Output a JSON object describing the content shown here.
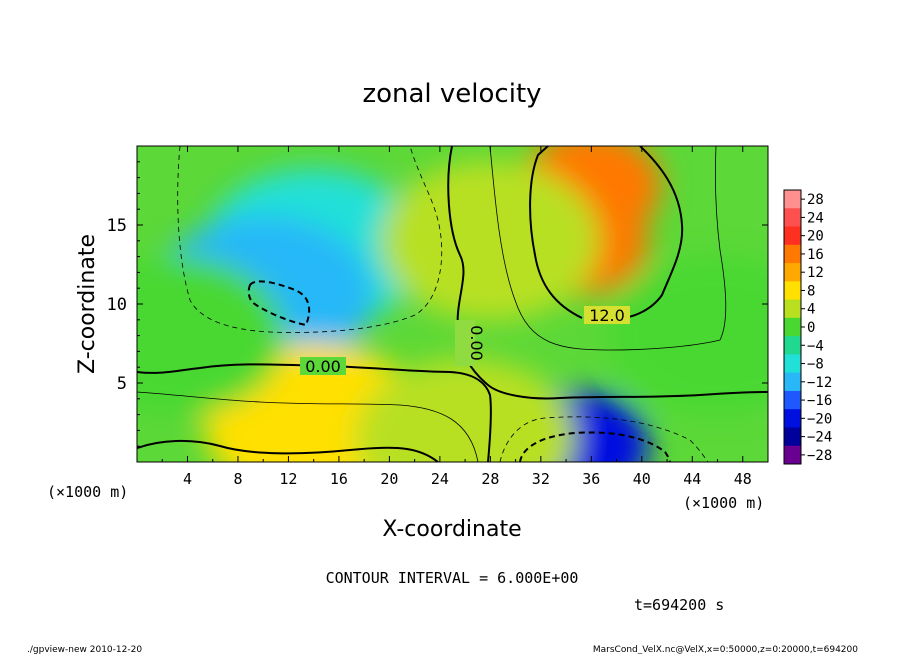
{
  "chart_data": {
    "type": "heatmap",
    "title": "zonal velocity",
    "xlabel": "X-coordinate",
    "ylabel": "Z-coordinate",
    "x_unit": "(×1000 m)",
    "y_unit": "(×1000 m)",
    "xlim": [
      0,
      50
    ],
    "ylim": [
      0,
      20
    ],
    "x_ticks": [
      "4",
      "8",
      "12",
      "16",
      "20",
      "24",
      "28",
      "32",
      "36",
      "40",
      "44",
      "48"
    ],
    "y_ticks": [
      "5",
      "10",
      "15"
    ],
    "colorbar": {
      "labels": [
        "28",
        "24",
        "20",
        "16",
        "12",
        "8",
        "4",
        "0",
        "−4",
        "−8",
        "−12",
        "−16",
        "−20",
        "−24",
        "−28"
      ],
      "colors": [
        "#ff9090",
        "#ff5050",
        "#ff3020",
        "#ff7800",
        "#ffa800",
        "#ffe000",
        "#b8e020",
        "#48d830",
        "#20d890",
        "#20e0d8",
        "#28b8f8",
        "#2058ff",
        "#0010e0",
        "#00009a",
        "#6a0090"
      ]
    },
    "contour_labels": [
      "0.00",
      "0.00",
      "12.0"
    ],
    "contour_interval_text": "CONTOUR INTERVAL = 6.000E+00",
    "time_text": "t=694200  s",
    "field_regions": [
      {
        "x": 14,
        "z": 13.5,
        "value": -8
      },
      {
        "x": 10,
        "z": 10.5,
        "value": -12
      },
      {
        "x": 35,
        "z": 14,
        "value": 16
      },
      {
        "x": 36,
        "z": 17.5,
        "value": 18
      },
      {
        "x": 35,
        "z": 1,
        "value": -20
      },
      {
        "x": 14,
        "z": 2.5,
        "value": 7
      },
      {
        "x": 26,
        "z": 1.5,
        "value": 3
      },
      {
        "x": 46,
        "z": 8,
        "value": 2
      },
      {
        "x": 28,
        "z": 14,
        "value": 5
      },
      {
        "x": 3,
        "z": 8,
        "value": 1
      }
    ]
  },
  "footer": {
    "left": "./gpview-new   2010-12-20",
    "right": "MarsCond_VelX.nc@VelX,x=0:50000,z=0:20000,t=694200"
  },
  "colors": {
    "frame": "#000000",
    "background": "#ffffff"
  }
}
